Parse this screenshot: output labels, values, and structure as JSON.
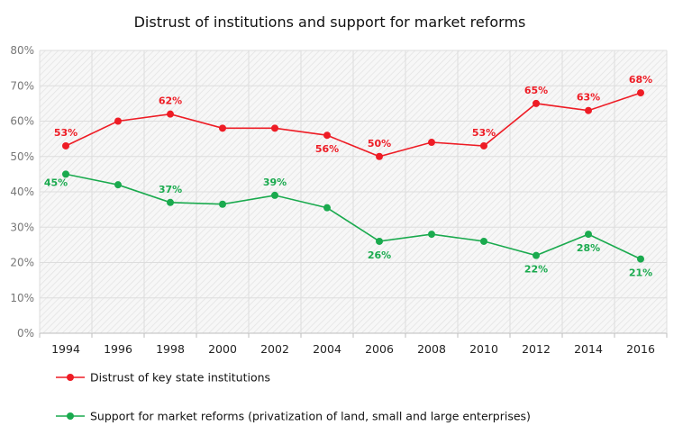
{
  "chart_data": {
    "type": "line",
    "title": "Distrust of institutions and support for market reforms",
    "x": [
      "1994",
      "1996",
      "1998",
      "2000",
      "2002",
      "2004",
      "2006",
      "2008",
      "2010",
      "2012",
      "2014",
      "2016"
    ],
    "y_ticks": [
      "0%",
      "10%",
      "20%",
      "30%",
      "40%",
      "50%",
      "60%",
      "70%",
      "80%"
    ],
    "ylim": [
      0,
      80
    ],
    "grid": true,
    "legend_position": "bottom-left",
    "series": [
      {
        "name": "Distrust of key state institutions",
        "color": "#ee1c25",
        "values": [
          53,
          60,
          62,
          58,
          58,
          56,
          50,
          54,
          53,
          65,
          63,
          68
        ],
        "labels": [
          "53%",
          "",
          "62%",
          "",
          "",
          "56%",
          "50%",
          "",
          "53%",
          "65%",
          "63%",
          "68%"
        ]
      },
      {
        "name": "Support for market reforms (privatization of land, small and large enterprises)",
        "color": "#1aaa4e",
        "values": [
          45,
          42,
          37,
          36.5,
          39,
          35.5,
          26,
          28,
          26,
          22,
          28,
          21
        ],
        "labels": [
          "45%",
          "",
          "37%",
          "",
          "39%",
          "",
          "26%",
          "",
          "",
          "22%",
          "28%",
          "21%"
        ]
      }
    ]
  }
}
